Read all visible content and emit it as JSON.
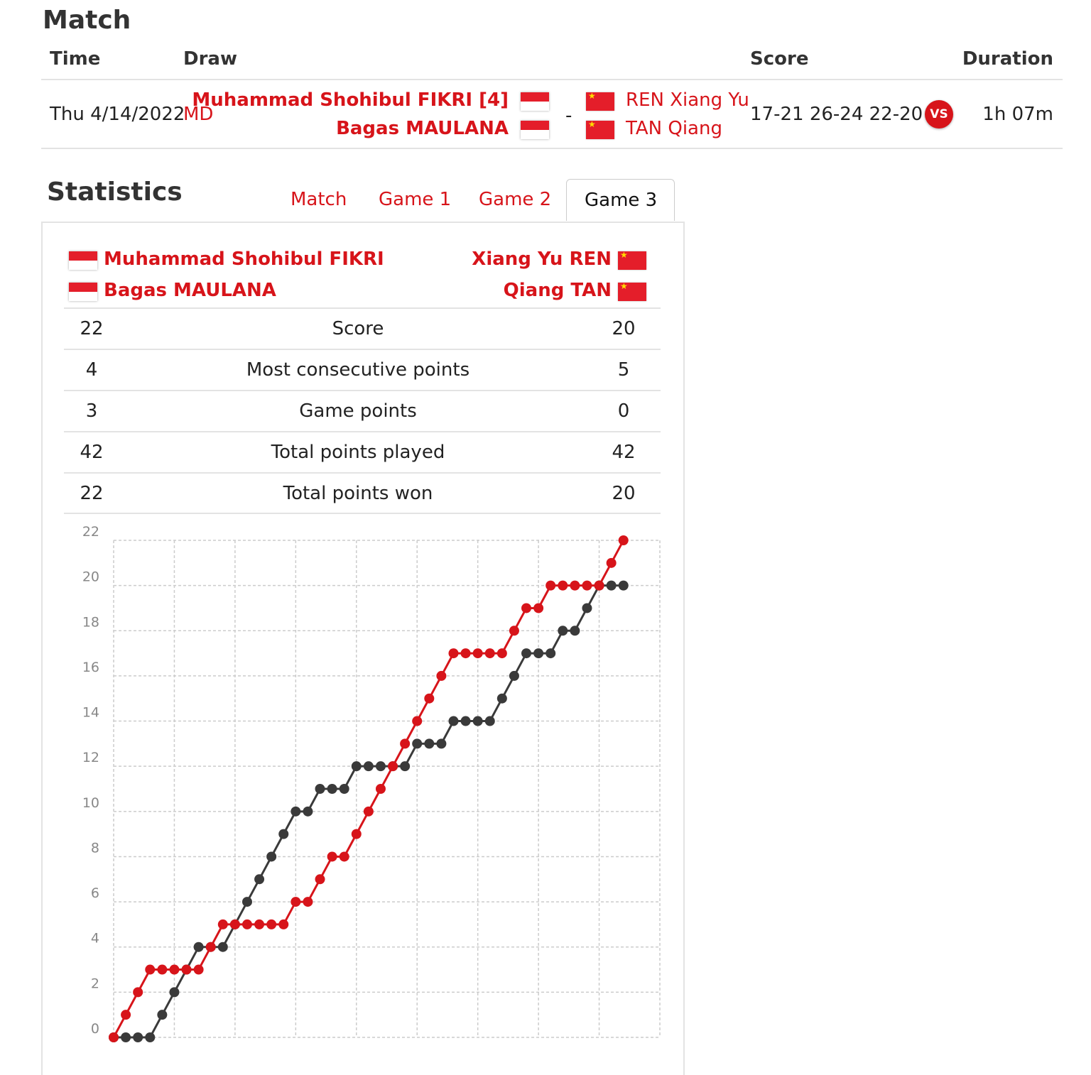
{
  "match": {
    "title": "Match",
    "headers": {
      "time": "Time",
      "draw": "Draw",
      "score": "Score",
      "duration": "Duration"
    },
    "time": "Thu 4/14/2022",
    "draw": "MD",
    "team1": [
      "Muhammad Shohibul FIKRI [4]",
      "Bagas MAULANA"
    ],
    "separator": "-",
    "team2": [
      "REN Xiang Yu",
      "TAN Qiang"
    ],
    "score": "17-21 26-24 22-20",
    "vs": "VS",
    "duration": "1h 07m"
  },
  "statistics": {
    "title": "Statistics",
    "tabs": [
      "Match",
      "Game 1",
      "Game 2",
      "Game 3"
    ],
    "active_tab": "Game 3",
    "team1": [
      "Muhammad Shohibul FIKRI",
      "Bagas MAULANA"
    ],
    "team2": [
      "Xiang Yu REN",
      "Qiang TAN"
    ],
    "rows": [
      {
        "left": "22",
        "label": "Score",
        "right": "20"
      },
      {
        "left": "4",
        "label": "Most consecutive points",
        "right": "5"
      },
      {
        "left": "3",
        "label": "Game points",
        "right": "0"
      },
      {
        "left": "42",
        "label": "Total points played",
        "right": "42"
      },
      {
        "left": "22",
        "label": "Total points won",
        "right": "20"
      }
    ]
  },
  "colors": {
    "accent": "#d7141a",
    "team2_line": "#3a3a3a",
    "grid": "#cccccc"
  },
  "chart_data": {
    "type": "line",
    "ylim": [
      0,
      22
    ],
    "yticks": [
      "0",
      "2",
      "4",
      "6",
      "8",
      "10",
      "12",
      "14",
      "16",
      "18",
      "20",
      "22"
    ],
    "x": [
      0,
      1,
      2,
      3,
      4,
      5,
      6,
      7,
      8,
      9,
      10,
      11,
      12,
      13,
      14,
      15,
      16,
      17,
      18,
      19,
      20,
      21,
      22,
      23,
      24,
      25,
      26,
      27,
      28,
      29,
      30,
      31,
      32,
      33,
      34,
      35,
      36,
      37,
      38,
      39,
      40,
      41,
      42
    ],
    "series": [
      {
        "color": "#d7141a",
        "values": [
          0,
          1,
          2,
          3,
          3,
          3,
          3,
          3,
          4,
          5,
          5,
          5,
          5,
          5,
          5,
          6,
          6,
          7,
          8,
          8,
          9,
          10,
          11,
          12,
          13,
          14,
          15,
          16,
          17,
          17,
          17,
          17,
          17,
          18,
          19,
          19,
          20,
          20,
          20,
          20,
          20,
          21,
          22
        ]
      },
      {
        "color": "#3a3a3a",
        "values": [
          0,
          0,
          0,
          0,
          1,
          2,
          3,
          4,
          4,
          4,
          5,
          6,
          7,
          8,
          9,
          10,
          10,
          11,
          11,
          11,
          12,
          12,
          12,
          12,
          12,
          13,
          13,
          13,
          14,
          14,
          14,
          14,
          15,
          16,
          17,
          17,
          17,
          18,
          18,
          19,
          20,
          20,
          20
        ]
      }
    ]
  }
}
